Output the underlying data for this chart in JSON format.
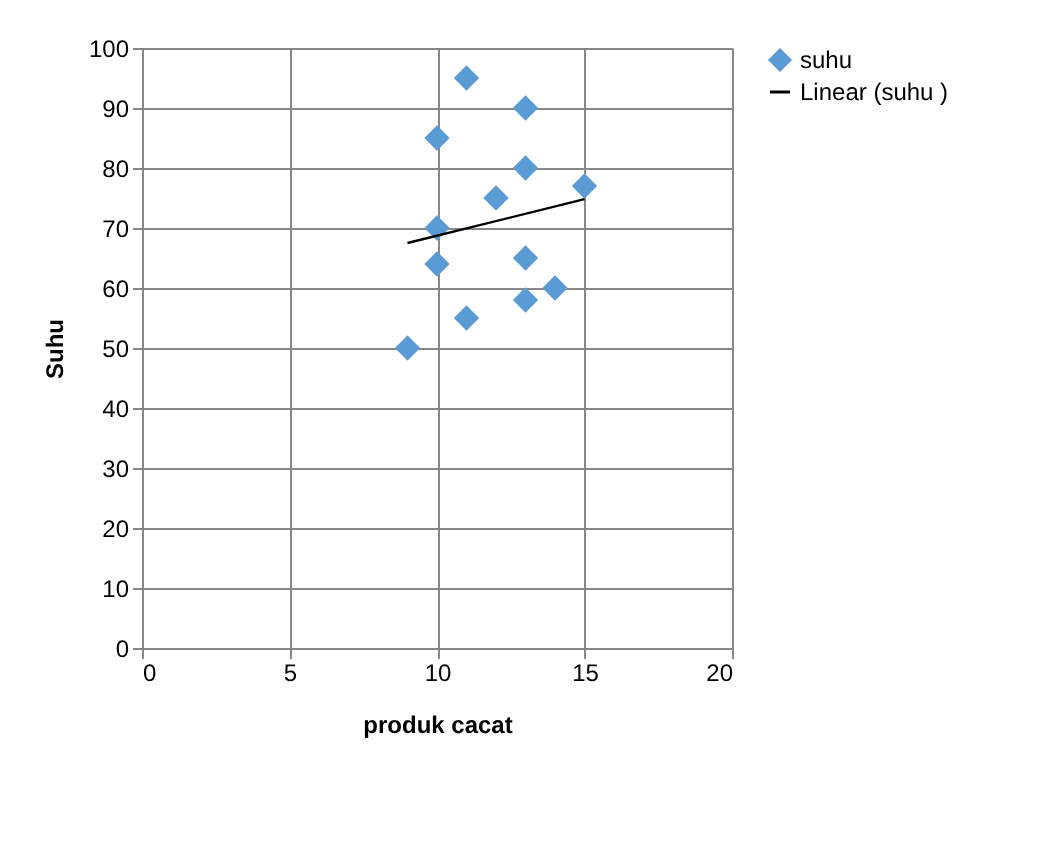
{
  "chart_data": {
    "type": "scatter",
    "xlabel": "produk cacat",
    "ylabel": "Suhu",
    "xlim": [
      0,
      20
    ],
    "xticks": [
      0,
      5,
      10,
      15,
      20
    ],
    "ylim": [
      0,
      100
    ],
    "yticks": [
      0,
      10,
      20,
      30,
      40,
      50,
      60,
      70,
      80,
      90,
      100
    ],
    "grid": true,
    "legend": "right",
    "marker": "diamond",
    "series": [
      {
        "name": "suhu",
        "color": "#5b9bd5",
        "x": [
          9,
          10,
          10,
          10,
          11,
          11,
          12,
          13,
          13,
          13,
          13,
          14,
          15
        ],
        "values": [
          50,
          85,
          70,
          64,
          95,
          55,
          75,
          90,
          80,
          65,
          58,
          60,
          77
        ]
      },
      {
        "name": "Linear (suhu )",
        "type": "line",
        "color": "#000000",
        "marker": "none",
        "line_style": "solid",
        "x": [
          9,
          15
        ],
        "values": [
          67.5,
          74.8
        ]
      }
    ]
  }
}
